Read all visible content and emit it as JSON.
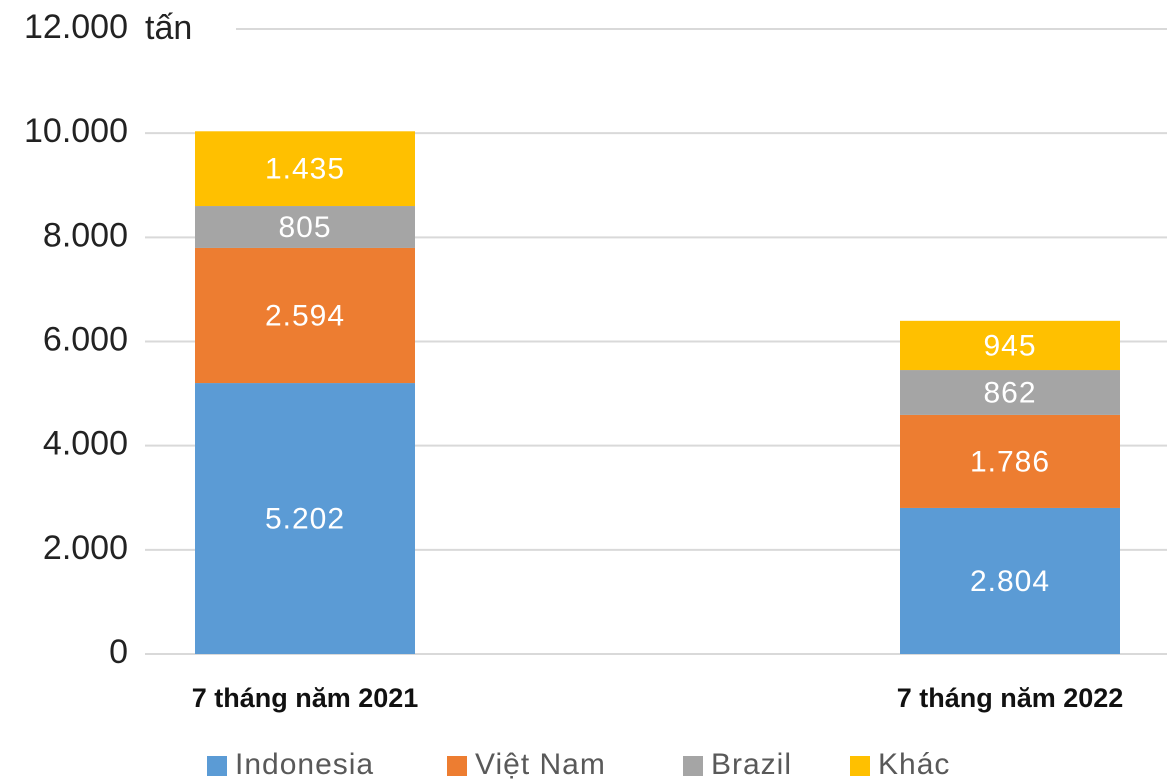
{
  "chart_data": {
    "type": "stacked_bar",
    "y_label": "tấn",
    "categories": [
      "7 tháng năm 2021",
      "7 tháng năm 2022"
    ],
    "series": [
      {
        "name": "Indonesia",
        "color": "#5b9bd5",
        "values": [
          5202,
          2804
        ],
        "value_labels": [
          "5.202",
          "2.804"
        ]
      },
      {
        "name": "Việt Nam",
        "color": "#ed7d31",
        "values": [
          2594,
          1786
        ],
        "value_labels": [
          "2.594",
          "1.786"
        ]
      },
      {
        "name": "Brazil",
        "color": "#a5a5a5",
        "values": [
          805,
          862
        ],
        "value_labels": [
          "805",
          "862"
        ]
      },
      {
        "name": "Khác",
        "color": "#ffc000",
        "values": [
          1435,
          945
        ],
        "value_labels": [
          "1.435",
          "945"
        ]
      }
    ],
    "ylim": [
      0,
      12000
    ],
    "yticks": [
      0,
      {
        "value": 2000,
        "label": "2.000"
      },
      {
        "value": 4000,
        "label": "4.000"
      },
      {
        "value": 6000,
        "label": "6.000"
      },
      {
        "value": 8000,
        "label": "8.000"
      },
      {
        "value": 10000,
        "label": "10.000"
      },
      {
        "value": 12000,
        "label": "12.000"
      }
    ],
    "grid": true
  }
}
